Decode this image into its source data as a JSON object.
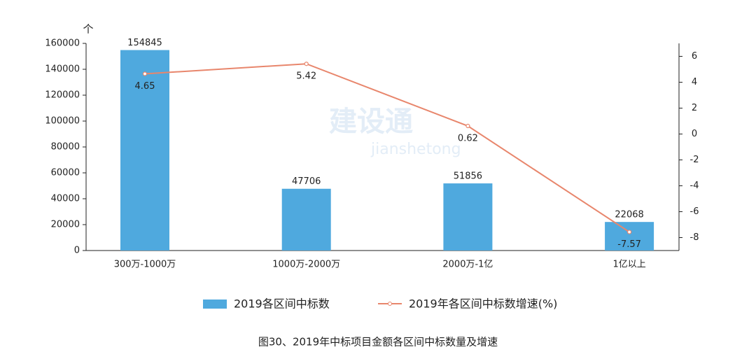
{
  "chart_data": {
    "type": "bar_line",
    "title": "图30、2019年中标项目金额各区间中标数量及增速",
    "y_label": "个",
    "watermark": [
      "建设通",
      "jianshetong"
    ],
    "categories": [
      "300万-1000万",
      "1000万-2000万",
      "2000万-1亿",
      "1亿以上"
    ],
    "series": [
      {
        "name": "2019各区间中标数",
        "type": "bar",
        "color": "#4fa9de",
        "values": [
          154845,
          47706,
          51856,
          22068
        ]
      },
      {
        "name": "2019年各区间中标数增速(%)",
        "type": "line",
        "axis": "y2",
        "color": "#e8866c",
        "values": [
          4.65,
          5.42,
          0.62,
          -7.57
        ]
      }
    ],
    "ylim": [
      0,
      160000
    ],
    "yticks": [
      0,
      20000,
      40000,
      60000,
      80000,
      100000,
      120000,
      140000,
      160000
    ],
    "y2lim": [
      -9,
      7
    ],
    "y2ticks": [
      -8,
      -6,
      -4,
      -2,
      0,
      2,
      4,
      6
    ],
    "grid": false
  }
}
